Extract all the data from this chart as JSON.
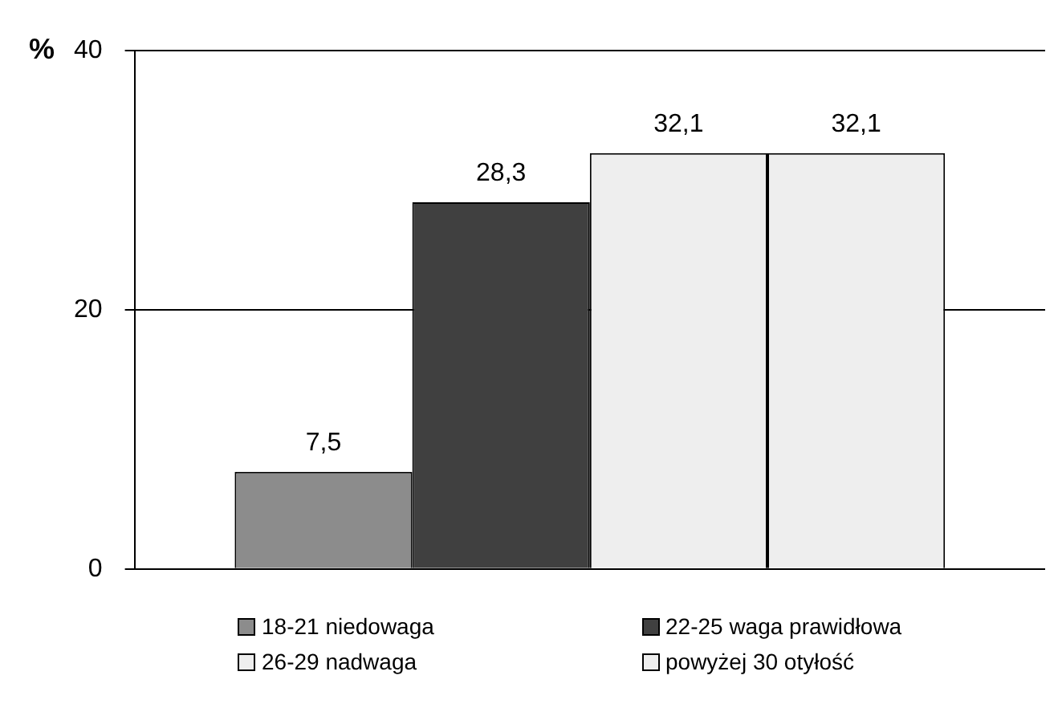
{
  "chart_data": {
    "type": "bar",
    "ylabel": "%",
    "categories": [
      null
    ],
    "series": [
      {
        "name": "18-21 niedowaga",
        "color": "#8c8c8c",
        "values": [
          7.5
        ],
        "value_labels": [
          "7,5"
        ]
      },
      {
        "name": "22-25 waga prawidłowa",
        "color": "#404040",
        "values": [
          28.3
        ],
        "value_labels": [
          "28,3"
        ]
      },
      {
        "name": "26-29 nadwaga",
        "color": "#eeeeee",
        "values": [
          32.1
        ],
        "value_labels": [
          "32,1"
        ]
      },
      {
        "name": "powyżej 30 otyłość",
        "color": "#eeeeee",
        "values": [
          32.1
        ],
        "value_labels": [
          "32,1"
        ]
      }
    ],
    "ylim": [
      0,
      40
    ],
    "yticks": [
      0,
      20,
      40
    ],
    "grid": "y",
    "legend": "bottom"
  }
}
